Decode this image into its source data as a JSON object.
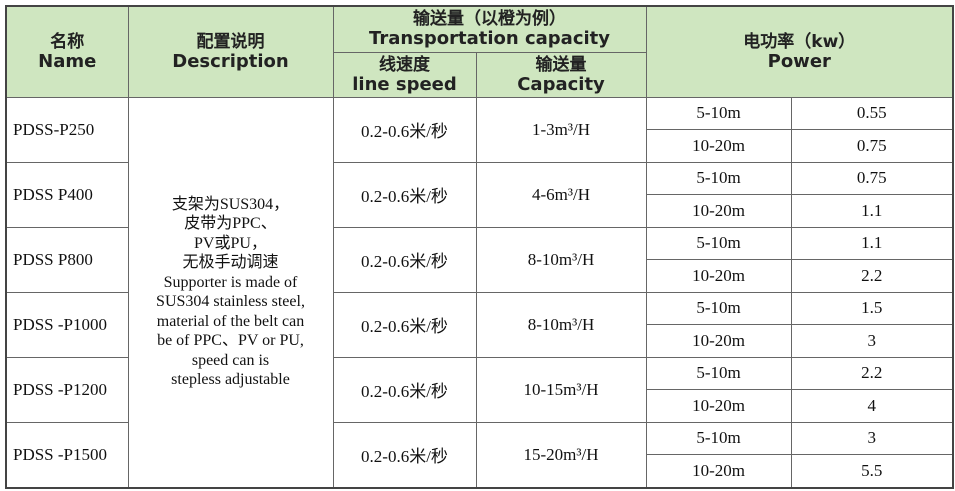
{
  "header": {
    "name": {
      "zh": "名称",
      "en": "Name"
    },
    "description": {
      "zh": "配置说明",
      "en": "Description"
    },
    "transport": {
      "zh": "输送量（以橙为例）",
      "en": "Transportation capacity"
    },
    "speed": {
      "zh": "线速度",
      "en": "line speed"
    },
    "capacity": {
      "zh": "输送量",
      "en": "Capacity"
    },
    "power": {
      "zh": "电功率（kw）",
      "en": "Power"
    }
  },
  "description": [
    "支架为SUS304，",
    "皮带为PPC、",
    "PV或PU，",
    "无极手动调速",
    "Supporter is made of",
    "SUS304 stainless steel,",
    "material of the belt can",
    "be of PPC、PV or PU,",
    "speed can is",
    "stepless adjustable"
  ],
  "rows": [
    {
      "name": "PDSS-P250",
      "speed": "0.2-0.6米/秒",
      "capacity": "1-3m³/H",
      "power": [
        {
          "range": "5-10m",
          "kw": "0.55"
        },
        {
          "range": "10-20m",
          "kw": "0.75"
        }
      ]
    },
    {
      "name": "PDSS P400",
      "speed": "0.2-0.6米/秒",
      "capacity": "4-6m³/H",
      "power": [
        {
          "range": "5-10m",
          "kw": "0.75"
        },
        {
          "range": "10-20m",
          "kw": "1.1"
        }
      ]
    },
    {
      "name": "PDSS P800",
      "speed": "0.2-0.6米/秒",
      "capacity": "8-10m³/H",
      "power": [
        {
          "range": "5-10m",
          "kw": "1.1"
        },
        {
          "range": "10-20m",
          "kw": "2.2"
        }
      ]
    },
    {
      "name": "PDSS -P1000",
      "speed": "0.2-0.6米/秒",
      "capacity": "8-10m³/H",
      "power": [
        {
          "range": "5-10m",
          "kw": "1.5"
        },
        {
          "range": "10-20m",
          "kw": "3"
        }
      ]
    },
    {
      "name": "PDSS -P1200",
      "speed": "0.2-0.6米/秒",
      "capacity": "10-15m³/H",
      "power": [
        {
          "range": "5-10m",
          "kw": "2.2"
        },
        {
          "range": "10-20m",
          "kw": "4"
        }
      ]
    },
    {
      "name": "PDSS -P1500",
      "speed": "0.2-0.6米/秒",
      "capacity": "15-20m³/H",
      "power": [
        {
          "range": "5-10m",
          "kw": "3"
        },
        {
          "range": "10-20m",
          "kw": "5.5"
        }
      ]
    }
  ]
}
